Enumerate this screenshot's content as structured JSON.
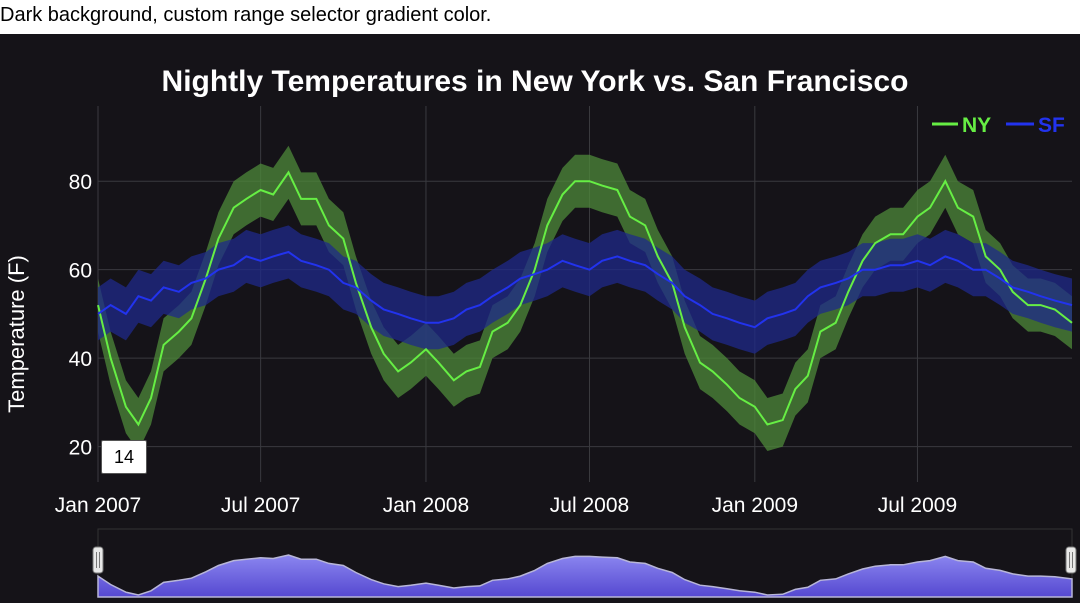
{
  "caption": "Dark background, custom range selector gradient color.",
  "roll_period": "14",
  "colors": {
    "background": "#151318",
    "ny": "#66ee44",
    "ny_band": "#4d8a3a",
    "sf": "#2233ee",
    "sf_band": "#1f2a8a",
    "grid": "#3a3a3f",
    "selector_top": "#8b86f0",
    "selector_bottom": "#5548d0"
  },
  "chart_data": {
    "type": "line",
    "title": "Nightly Temperatures in New York vs. San Francisco",
    "xlabel": "",
    "ylabel": "Temperature (F)",
    "xlim": [
      "2007-01-01",
      "2009-12-20"
    ],
    "ylim": [
      12,
      97
    ],
    "x_ticks": [
      "Jan 2007",
      "Jul 2007",
      "Jan 2008",
      "Jul 2008",
      "Jan 2009",
      "Jul 2009"
    ],
    "x_tick_dates": [
      "2007-01-01",
      "2007-07-01",
      "2008-01-01",
      "2008-07-01",
      "2009-01-01",
      "2009-07-01"
    ],
    "y_ticks": [
      20,
      40,
      60,
      80
    ],
    "grid": true,
    "legend_position": "top-right",
    "band_halfwidth": 6,
    "series": [
      {
        "name": "NY",
        "color": "#66ee44",
        "x": [
          "2007-01-01",
          "2007-01-15",
          "2007-02-01",
          "2007-02-15",
          "2007-03-01",
          "2007-03-15",
          "2007-04-01",
          "2007-04-15",
          "2007-05-01",
          "2007-05-15",
          "2007-06-01",
          "2007-06-15",
          "2007-07-01",
          "2007-07-15",
          "2007-08-01",
          "2007-08-15",
          "2007-09-01",
          "2007-09-15",
          "2007-10-01",
          "2007-10-15",
          "2007-11-01",
          "2007-11-15",
          "2007-12-01",
          "2007-12-15",
          "2008-01-01",
          "2008-01-15",
          "2008-02-01",
          "2008-02-15",
          "2008-03-01",
          "2008-03-15",
          "2008-04-01",
          "2008-04-15",
          "2008-05-01",
          "2008-05-15",
          "2008-06-01",
          "2008-06-15",
          "2008-07-01",
          "2008-07-15",
          "2008-08-01",
          "2008-08-15",
          "2008-09-01",
          "2008-09-15",
          "2008-10-01",
          "2008-10-15",
          "2008-11-01",
          "2008-11-15",
          "2008-12-01",
          "2008-12-15",
          "2009-01-01",
          "2009-01-15",
          "2009-02-01",
          "2009-02-15",
          "2009-03-01",
          "2009-03-15",
          "2009-04-01",
          "2009-04-15",
          "2009-05-01",
          "2009-05-15",
          "2009-06-01",
          "2009-06-15",
          "2009-07-01",
          "2009-07-15",
          "2009-08-01",
          "2009-08-15",
          "2009-09-01",
          "2009-09-15",
          "2009-10-01",
          "2009-10-15",
          "2009-11-01",
          "2009-11-15",
          "2009-12-01",
          "2009-12-20"
        ],
        "values": [
          52,
          40,
          29,
          25,
          31,
          43,
          46,
          49,
          58,
          67,
          74,
          76,
          78,
          77,
          82,
          76,
          76,
          70,
          67,
          57,
          47,
          41,
          37,
          39,
          42,
          39,
          35,
          37,
          38,
          46,
          48,
          52,
          60,
          70,
          77,
          80,
          80,
          79,
          78,
          72,
          70,
          63,
          57,
          47,
          39,
          37,
          34,
          31,
          29,
          25,
          26,
          33,
          36,
          46,
          48,
          55,
          62,
          66,
          68,
          68,
          72,
          74,
          80,
          74,
          72,
          63,
          60,
          55,
          52,
          52,
          51,
          48
        ]
      },
      {
        "name": "SF",
        "color": "#2233ee",
        "x": [
          "2007-01-01",
          "2007-01-15",
          "2007-02-01",
          "2007-02-15",
          "2007-03-01",
          "2007-03-15",
          "2007-04-01",
          "2007-04-15",
          "2007-05-01",
          "2007-05-15",
          "2007-06-01",
          "2007-06-15",
          "2007-07-01",
          "2007-07-15",
          "2007-08-01",
          "2007-08-15",
          "2007-09-01",
          "2007-09-15",
          "2007-10-01",
          "2007-10-15",
          "2007-11-01",
          "2007-11-15",
          "2007-12-01",
          "2007-12-15",
          "2008-01-01",
          "2008-01-15",
          "2008-02-01",
          "2008-02-15",
          "2008-03-01",
          "2008-03-15",
          "2008-04-01",
          "2008-04-15",
          "2008-05-01",
          "2008-05-15",
          "2008-06-01",
          "2008-06-15",
          "2008-07-01",
          "2008-07-15",
          "2008-08-01",
          "2008-08-15",
          "2008-09-01",
          "2008-09-15",
          "2008-10-01",
          "2008-10-15",
          "2008-11-01",
          "2008-11-15",
          "2008-12-01",
          "2008-12-15",
          "2009-01-01",
          "2009-01-15",
          "2009-02-01",
          "2009-02-15",
          "2009-03-01",
          "2009-03-15",
          "2009-04-01",
          "2009-04-15",
          "2009-05-01",
          "2009-05-15",
          "2009-06-01",
          "2009-06-15",
          "2009-07-01",
          "2009-07-15",
          "2009-08-01",
          "2009-08-15",
          "2009-09-01",
          "2009-09-15",
          "2009-10-01",
          "2009-10-15",
          "2009-11-01",
          "2009-11-15",
          "2009-12-01",
          "2009-12-20"
        ],
        "values": [
          50,
          52,
          50,
          54,
          53,
          56,
          55,
          57,
          58,
          60,
          61,
          63,
          62,
          63,
          64,
          62,
          61,
          60,
          57,
          56,
          53,
          51,
          50,
          49,
          48,
          48,
          49,
          51,
          52,
          54,
          56,
          58,
          59,
          60,
          62,
          61,
          60,
          62,
          63,
          62,
          61,
          59,
          57,
          54,
          52,
          50,
          49,
          48,
          47,
          49,
          50,
          51,
          54,
          56,
          57,
          58,
          60,
          60,
          61,
          61,
          62,
          61,
          63,
          62,
          60,
          60,
          58,
          56,
          55,
          54,
          53,
          52
        ]
      }
    ]
  }
}
